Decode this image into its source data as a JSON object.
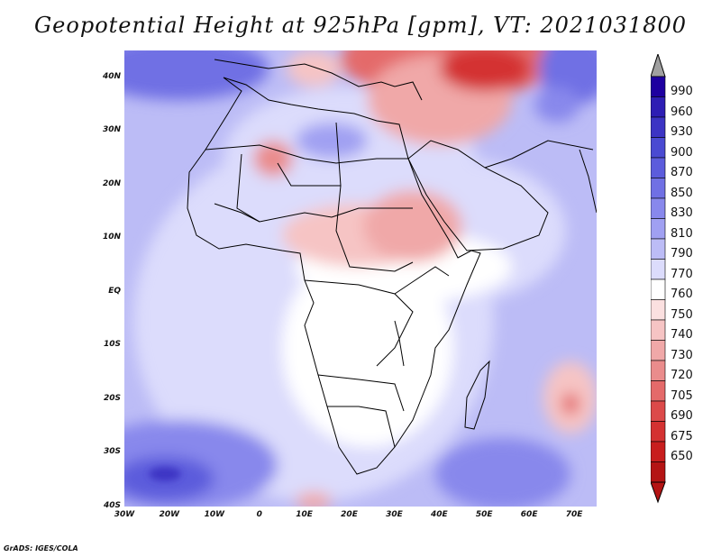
{
  "title": "Geopotential Height at 925hPa [gpm], VT: 2021031800",
  "footer": "GrADS: IGES/COLA",
  "map": {
    "variable": "Geopotential Height",
    "level": "925hPa",
    "units": "gpm",
    "valid_time": "2021031800",
    "lat_ticks": [
      "40N",
      "30N",
      "20N",
      "10N",
      "EQ",
      "10S",
      "20S",
      "30S",
      "40S"
    ],
    "lon_ticks": [
      "30W",
      "20W",
      "10W",
      "0",
      "10E",
      "20E",
      "30E",
      "40E",
      "50E",
      "60E",
      "70E"
    ],
    "lat_range": [
      -40,
      45
    ],
    "lon_range": [
      -30,
      75
    ]
  },
  "colorbar": {
    "levels": [
      "990",
      "960",
      "930",
      "900",
      "870",
      "850",
      "830",
      "810",
      "790",
      "770",
      "760",
      "750",
      "740",
      "730",
      "720",
      "705",
      "690",
      "675",
      "650"
    ],
    "colors": [
      "#1e00a0",
      "#2e1eb4",
      "#3c34c4",
      "#4a4ad2",
      "#5c5cdc",
      "#7070e4",
      "#8888ec",
      "#a0a0f2",
      "#bcbcf6",
      "#dcdcfc",
      "#ffffff",
      "#fbe0e0",
      "#f6c4c4",
      "#f0a8a8",
      "#ea8c8c",
      "#e46a6a",
      "#dc4a4a",
      "#d43232",
      "#c81e1e",
      "#b41414"
    ]
  }
}
